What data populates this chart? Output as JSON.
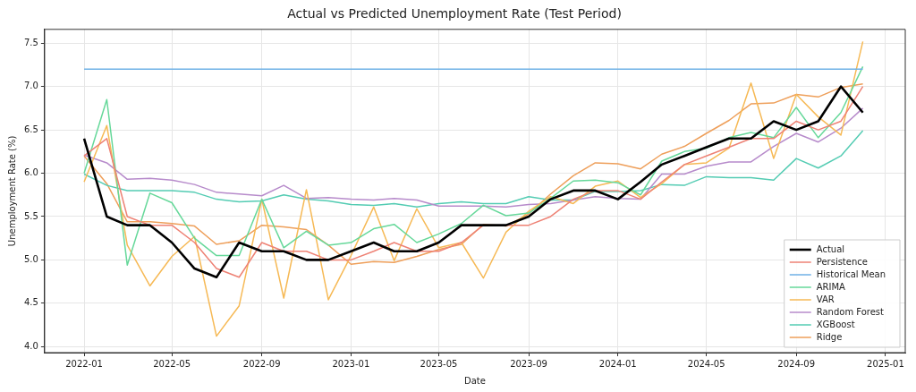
{
  "chart_data": {
    "type": "line",
    "title": "Actual vs Predicted Unemployment Rate (Test Period)",
    "xlabel": "Date",
    "ylabel": "Unemployment Rate (%)",
    "x": [
      "2022-01",
      "2022-02",
      "2022-03",
      "2022-04",
      "2022-05",
      "2022-06",
      "2022-07",
      "2022-08",
      "2022-09",
      "2022-10",
      "2022-11",
      "2022-12",
      "2023-01",
      "2023-02",
      "2023-03",
      "2023-04",
      "2023-05",
      "2023-06",
      "2023-07",
      "2023-08",
      "2023-09",
      "2023-10",
      "2023-11",
      "2023-12",
      "2024-01",
      "2024-02",
      "2024-03",
      "2024-04",
      "2024-05",
      "2024-06",
      "2024-07",
      "2024-08",
      "2024-09",
      "2024-10",
      "2024-11",
      "2024-12"
    ],
    "series": [
      {
        "name": "Actual",
        "color": "#000000",
        "values": [
          6.4,
          5.5,
          5.4,
          5.4,
          5.2,
          4.9,
          4.8,
          5.2,
          5.1,
          5.1,
          5.0,
          5.0,
          5.1,
          5.2,
          5.1,
          5.1,
          5.2,
          5.4,
          5.4,
          5.4,
          5.5,
          5.7,
          5.8,
          5.8,
          5.7,
          5.9,
          6.1,
          6.2,
          6.3,
          6.4,
          6.4,
          6.6,
          6.5,
          6.6,
          7.0,
          6.7
        ]
      },
      {
        "name": "Persistence",
        "color": "#ee8275",
        "values": [
          6.2,
          6.4,
          5.5,
          5.4,
          5.4,
          5.2,
          4.9,
          4.8,
          5.2,
          5.1,
          5.1,
          5.0,
          5.0,
          5.1,
          5.2,
          5.1,
          5.1,
          5.2,
          5.4,
          5.4,
          5.4,
          5.5,
          5.7,
          5.8,
          5.8,
          5.7,
          5.9,
          6.1,
          6.2,
          6.3,
          6.4,
          6.4,
          6.6,
          6.5,
          6.6,
          7.0
        ]
      },
      {
        "name": "Historical Mean",
        "color": "#6fb1e6",
        "values": [
          7.2,
          7.2,
          7.2,
          7.2,
          7.2,
          7.2,
          7.2,
          7.2,
          7.2,
          7.2,
          7.2,
          7.2,
          7.2,
          7.2,
          7.2,
          7.2,
          7.2,
          7.2,
          7.2,
          7.2,
          7.2,
          7.2,
          7.2,
          7.2,
          7.2,
          7.2,
          7.2,
          7.2,
          7.2,
          7.2,
          7.2,
          7.2,
          7.2,
          7.2,
          7.2,
          7.2
        ]
      },
      {
        "name": "ARIMA",
        "color": "#66d89a",
        "values": [
          6.0,
          6.85,
          4.94,
          5.77,
          5.66,
          5.25,
          5.05,
          5.05,
          5.7,
          5.14,
          5.33,
          5.17,
          5.2,
          5.36,
          5.41,
          5.2,
          5.3,
          5.42,
          5.63,
          5.51,
          5.54,
          5.71,
          5.91,
          5.92,
          5.89,
          5.75,
          6.14,
          6.25,
          6.29,
          6.41,
          6.47,
          6.41,
          6.76,
          6.41,
          6.7,
          7.23
        ]
      },
      {
        "name": "VAR",
        "color": "#f6b955",
        "values": [
          5.9,
          6.55,
          5.17,
          4.7,
          5.04,
          5.27,
          4.12,
          4.47,
          5.7,
          4.56,
          5.81,
          4.54,
          5.05,
          5.61,
          4.99,
          5.59,
          5.14,
          5.2,
          4.79,
          5.32,
          5.56,
          5.73,
          5.65,
          5.85,
          5.91,
          5.72,
          5.88,
          6.1,
          6.12,
          6.29,
          7.04,
          6.17,
          6.91,
          6.65,
          6.44,
          7.52
        ]
      },
      {
        "name": "Random Forest",
        "color": "#b78bcb",
        "values": [
          6.21,
          6.12,
          5.93,
          5.94,
          5.92,
          5.87,
          5.78,
          5.76,
          5.74,
          5.86,
          5.71,
          5.72,
          5.7,
          5.69,
          5.71,
          5.69,
          5.62,
          5.62,
          5.62,
          5.61,
          5.64,
          5.65,
          5.69,
          5.73,
          5.71,
          5.7,
          5.99,
          5.99,
          6.08,
          6.13,
          6.13,
          6.31,
          6.46,
          6.36,
          6.52,
          6.75
        ]
      },
      {
        "name": "XGBoost",
        "color": "#54ccb3",
        "values": [
          5.99,
          5.86,
          5.8,
          5.8,
          5.8,
          5.78,
          5.7,
          5.67,
          5.68,
          5.75,
          5.7,
          5.68,
          5.64,
          5.63,
          5.65,
          5.61,
          5.65,
          5.67,
          5.65,
          5.65,
          5.73,
          5.69,
          5.69,
          5.79,
          5.79,
          5.8,
          5.87,
          5.86,
          5.96,
          5.95,
          5.95,
          5.92,
          6.17,
          6.06,
          6.2,
          6.49
        ]
      },
      {
        "name": "Ridge",
        "color": "#ee9f5a",
        "values": [
          6.2,
          5.88,
          5.44,
          5.44,
          5.42,
          5.39,
          5.18,
          5.22,
          5.4,
          5.38,
          5.35,
          5.17,
          4.95,
          4.98,
          4.97,
          5.04,
          5.12,
          5.18,
          5.41,
          5.39,
          5.53,
          5.76,
          5.97,
          6.12,
          6.11,
          6.05,
          6.22,
          6.31,
          6.46,
          6.61,
          6.8,
          6.81,
          6.91,
          6.88,
          6.99,
          7.03
        ]
      }
    ],
    "xlim": [
      "2021-11-08",
      "2025-01-28"
    ],
    "xticks": [
      "2022-01",
      "2022-05",
      "2022-09",
      "2023-01",
      "2023-05",
      "2023-09",
      "2024-01",
      "2024-05",
      "2024-09",
      "2025-01"
    ],
    "ylim": [
      3.93,
      7.66
    ],
    "yticks": [
      {
        "value": 4,
        "label": "4.0"
      },
      {
        "value": 4.5,
        "label": "4.5"
      },
      {
        "value": 5,
        "label": "5.0"
      },
      {
        "value": 5.5,
        "label": "5.5"
      },
      {
        "value": 6,
        "label": "6.0"
      },
      {
        "value": 6.5,
        "label": "6.5"
      },
      {
        "value": 7,
        "label": "7.0"
      },
      {
        "value": 7.5,
        "label": "7.5"
      }
    ],
    "grid": true,
    "legend": "bottom right",
    "marker": "none",
    "line_style": "solid"
  }
}
